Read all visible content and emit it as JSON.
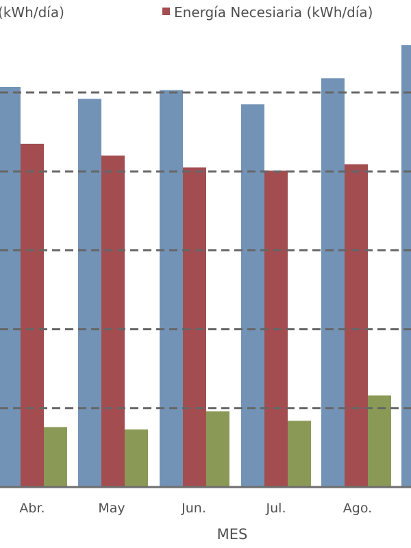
{
  "chart_data": {
    "type": "bar",
    "title": "",
    "xlabel": "MES",
    "ylabel": "",
    "categories": [
      "Abr.",
      "May",
      "Jun.",
      "Jul.",
      "Ago.",
      ""
    ],
    "series": [
      {
        "name": "",
        "color": "#7293b6",
        "values": [
          5.07,
          4.92,
          5.03,
          4.85,
          5.18,
          5.6
        ]
      },
      {
        "name": "Energía Necesiaria (kWh/día)",
        "color": "#a34d50",
        "values": [
          4.35,
          4.2,
          4.05,
          4.01,
          4.09,
          null
        ]
      },
      {
        "name": "",
        "color": "#8a9a56",
        "values": [
          0.76,
          0.73,
          0.96,
          0.84,
          1.16,
          null
        ]
      }
    ],
    "ylim": [
      0,
      6
    ],
    "grid": true,
    "legend_position": "top",
    "legend_partial_text": "(kWh/día)"
  }
}
